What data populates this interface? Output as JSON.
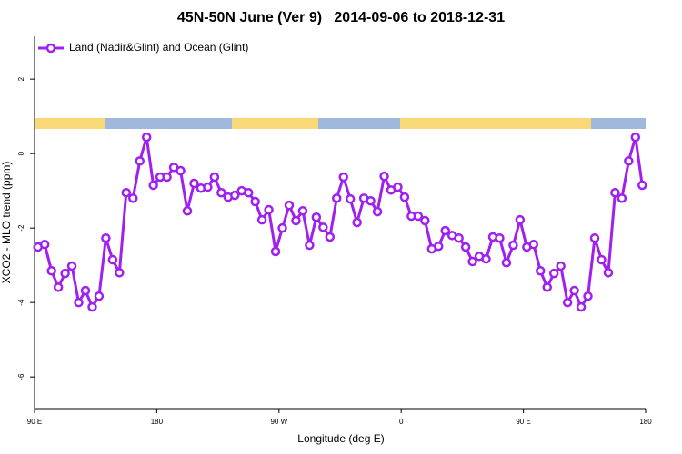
{
  "chart_data": {
    "type": "line",
    "title": "45N-50N June (Ver 9)   2014-09-06 to 2018-12-31",
    "xlabel": "Longitude (deg E)",
    "ylabel": "XCO2 - MLO trend (ppm)",
    "xlim": [
      90,
      540
    ],
    "ylim": [
      -6.85,
      3.15
    ],
    "xticks": [
      {
        "value": 90,
        "label": "90 E"
      },
      180,
      {
        "value": 270,
        "label": "90 W"
      },
      {
        "value": 360,
        "label": "0"
      },
      {
        "value": 450,
        "label": "90 E"
      },
      {
        "value": 540,
        "label": "180"
      }
    ],
    "yticks": [
      -6,
      -4,
      -2,
      0,
      2
    ],
    "legend": "top-left",
    "x": [
      92.5,
      97.5,
      102.5,
      107.5,
      112.5,
      117.5,
      122.5,
      127.5,
      132.5,
      137.5,
      142.5,
      147.5,
      152.5,
      157.5,
      162.5,
      167.5,
      172.5,
      177.5,
      182.5,
      187.5,
      192.5,
      197.5,
      202.5,
      207.5,
      212.5,
      217.5,
      222.5,
      227.5,
      232.5,
      237.5,
      242.5,
      247.5,
      252.5,
      257.5,
      262.5,
      267.5,
      272.5,
      277.5,
      282.5,
      287.5,
      292.5,
      297.5,
      302.5,
      307.5,
      312.5,
      317.5,
      322.5,
      327.5,
      332.5,
      337.5,
      342.5,
      347.5,
      352.5,
      357.5,
      362.5,
      367.5,
      372.5,
      377.5,
      382.5,
      387.5,
      392.5,
      397.5,
      402.5,
      407.5,
      412.5,
      417.5,
      422.5,
      427.5,
      432.5,
      437.5,
      442.5,
      447.5,
      452.5,
      457.5,
      462.5,
      467.5,
      472.5,
      477.5,
      482.5,
      487.5,
      492.5,
      497.5,
      502.5,
      507.5,
      512.5,
      517.5,
      522.5,
      527.5,
      532.5,
      537.5
    ],
    "series": [
      {
        "name": "Land (Nadir&Glint) and Ocean (Glint)",
        "color": "#a020f0",
        "values": [
          -2.51,
          -2.44,
          -3.15,
          -3.59,
          -3.22,
          -3.02,
          -4.0,
          -3.68,
          -4.12,
          -3.83,
          -2.27,
          -2.85,
          -3.2,
          -1.05,
          -1.2,
          -0.2,
          0.44,
          -0.85,
          -0.63,
          -0.63,
          -0.37,
          -0.46,
          -1.54,
          -0.8,
          -0.93,
          -0.9,
          -0.63,
          -1.05,
          -1.17,
          -1.12,
          -1.0,
          -1.05,
          -1.29,
          -1.78,
          -1.51,
          -2.63,
          -2.0,
          -1.39,
          -1.8,
          -1.54,
          -2.46,
          -1.71,
          -1.98,
          -2.24,
          -1.2,
          -0.63,
          -1.22,
          -1.85,
          -1.2,
          -1.27,
          -1.56,
          -0.61,
          -0.98,
          -0.9,
          -1.17,
          -1.68,
          -1.68,
          -1.8,
          -2.56,
          -2.49,
          -2.07,
          -2.2,
          -2.27,
          -2.51,
          -2.9,
          -2.76,
          -2.83,
          -2.24,
          -2.27,
          -2.93,
          -2.46,
          -1.78,
          -2.51,
          -2.44,
          -3.15,
          -3.59,
          -3.22,
          -3.02,
          -4.0,
          -3.68,
          -4.12,
          -3.83,
          -2.27,
          -2.85,
          -3.2,
          -1.05,
          -1.2,
          -0.2,
          0.44,
          -0.85
        ]
      }
    ]
  }
}
